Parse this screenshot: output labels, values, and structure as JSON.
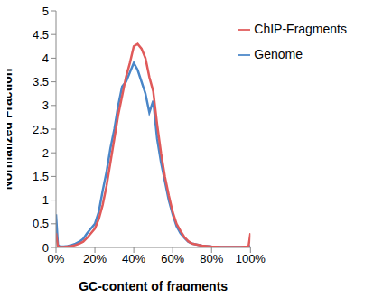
{
  "chart_data": {
    "type": "line",
    "x_label": "GC-content of fragments",
    "y_label": "Normalized Fraction",
    "x": [
      0,
      1,
      2,
      4,
      6,
      8,
      10,
      12,
      14,
      16,
      18,
      20,
      22,
      24,
      26,
      28,
      30,
      32,
      34,
      36,
      38,
      40,
      42,
      44,
      46,
      48,
      50,
      52,
      54,
      56,
      58,
      60,
      62,
      64,
      66,
      68,
      70,
      75,
      80,
      85,
      90,
      95,
      99,
      100
    ],
    "series": [
      {
        "name": "Genome",
        "color": "#4a86c8",
        "values": [
          0.7,
          0.05,
          0.02,
          0.02,
          0.03,
          0.05,
          0.08,
          0.12,
          0.18,
          0.3,
          0.4,
          0.5,
          0.75,
          1.2,
          1.6,
          2.1,
          2.5,
          3.0,
          3.4,
          3.5,
          3.7,
          3.9,
          3.75,
          3.5,
          3.25,
          2.85,
          3.1,
          2.3,
          1.8,
          1.4,
          1.0,
          0.7,
          0.45,
          0.3,
          0.2,
          0.12,
          0.08,
          0.04,
          0.02,
          0.01,
          0.01,
          0.01,
          0.01,
          0.03
        ]
      },
      {
        "name": "ChIP-Fragments",
        "color": "#e05a5a",
        "values": [
          0.3,
          0.02,
          0.01,
          0.01,
          0.02,
          0.03,
          0.05,
          0.08,
          0.12,
          0.2,
          0.3,
          0.4,
          0.6,
          0.9,
          1.3,
          1.8,
          2.3,
          2.8,
          3.2,
          3.6,
          3.9,
          4.25,
          4.3,
          4.2,
          4.0,
          3.6,
          3.3,
          2.6,
          2.0,
          1.5,
          1.1,
          0.75,
          0.5,
          0.35,
          0.22,
          0.13,
          0.08,
          0.04,
          0.02,
          0.01,
          0.01,
          0.01,
          0.02,
          0.3
        ]
      }
    ],
    "xlim": [
      0,
      100
    ],
    "xticks": [
      {
        "value": 0,
        "label": "0%"
      },
      {
        "value": 20,
        "label": "20%"
      },
      {
        "value": 40,
        "label": "40%"
      },
      {
        "value": 60,
        "label": "60%"
      },
      {
        "value": 80,
        "label": "80%"
      },
      {
        "value": 100,
        "label": "100%"
      }
    ],
    "ylim": [
      0,
      5
    ],
    "yticks": [
      0,
      0.5,
      1,
      1.5,
      2,
      2.5,
      3,
      3.5,
      4,
      4.5,
      5
    ],
    "grid": false,
    "legend": "upper right"
  }
}
